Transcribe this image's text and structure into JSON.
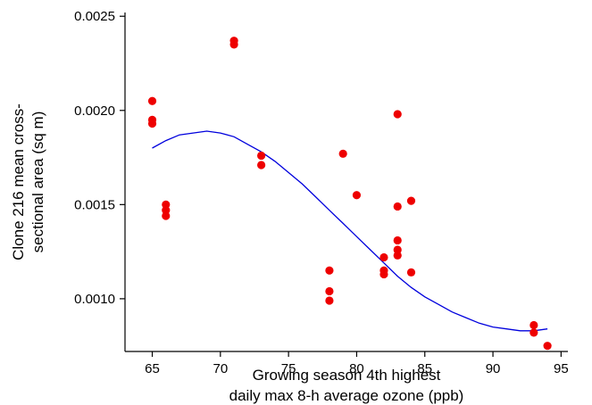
{
  "chart_data": {
    "type": "scatter",
    "xlabel": [
      "Growing season 4th highest",
      "daily max 8-h average ozone (ppb)"
    ],
    "ylabel": [
      "Clone 216 mean cross-",
      "sectional area (sq m)"
    ],
    "xlim": [
      63,
      95.5
    ],
    "ylim": [
      0.00072,
      0.00252
    ],
    "x_ticks": [
      65,
      70,
      75,
      80,
      85,
      90,
      95
    ],
    "y_ticks": [
      0.001,
      0.0015,
      0.002,
      0.0025
    ],
    "x_tick_labels": [
      "65",
      "70",
      "75",
      "80",
      "85",
      "90",
      "95"
    ],
    "y_tick_labels": [
      "0.0010",
      "0.0015",
      "0.0020",
      "0.0025"
    ],
    "grid": false,
    "points_color": "#ee0000",
    "points": [
      {
        "x": 65,
        "y": 0.00205
      },
      {
        "x": 65,
        "y": 0.00195
      },
      {
        "x": 65,
        "y": 0.00193
      },
      {
        "x": 66,
        "y": 0.0015
      },
      {
        "x": 66,
        "y": 0.00147
      },
      {
        "x": 66,
        "y": 0.00144
      },
      {
        "x": 71,
        "y": 0.00237
      },
      {
        "x": 71,
        "y": 0.00235
      },
      {
        "x": 73,
        "y": 0.00176
      },
      {
        "x": 73,
        "y": 0.00171
      },
      {
        "x": 78,
        "y": 0.00115
      },
      {
        "x": 78,
        "y": 0.00104
      },
      {
        "x": 78,
        "y": 0.00099
      },
      {
        "x": 79,
        "y": 0.00177
      },
      {
        "x": 80,
        "y": 0.00155
      },
      {
        "x": 82,
        "y": 0.00122
      },
      {
        "x": 82,
        "y": 0.00115
      },
      {
        "x": 82,
        "y": 0.00113
      },
      {
        "x": 83,
        "y": 0.00198
      },
      {
        "x": 83,
        "y": 0.00149
      },
      {
        "x": 83,
        "y": 0.00131
      },
      {
        "x": 83,
        "y": 0.00126
      },
      {
        "x": 83,
        "y": 0.00123
      },
      {
        "x": 84,
        "y": 0.00152
      },
      {
        "x": 84,
        "y": 0.00114
      },
      {
        "x": 93,
        "y": 0.00086
      },
      {
        "x": 93,
        "y": 0.00082
      },
      {
        "x": 94,
        "y": 0.00075
      }
    ],
    "fit_line": {
      "color": "#0000dd",
      "x": [
        65,
        66,
        67,
        68,
        69,
        70,
        71,
        72,
        73,
        74,
        75,
        76,
        77,
        78,
        79,
        80,
        81,
        82,
        83,
        84,
        85,
        86,
        87,
        88,
        89,
        90,
        91,
        92,
        93,
        94
      ],
      "y": [
        0.0018,
        0.00184,
        0.00187,
        0.00188,
        0.00189,
        0.00188,
        0.00186,
        0.00182,
        0.00178,
        0.00173,
        0.00167,
        0.00161,
        0.00154,
        0.00147,
        0.0014,
        0.00133,
        0.00126,
        0.00119,
        0.00112,
        0.00106,
        0.00101,
        0.00097,
        0.00093,
        0.0009,
        0.00087,
        0.00085,
        0.00084,
        0.00083,
        0.00083,
        0.00084
      ]
    }
  }
}
